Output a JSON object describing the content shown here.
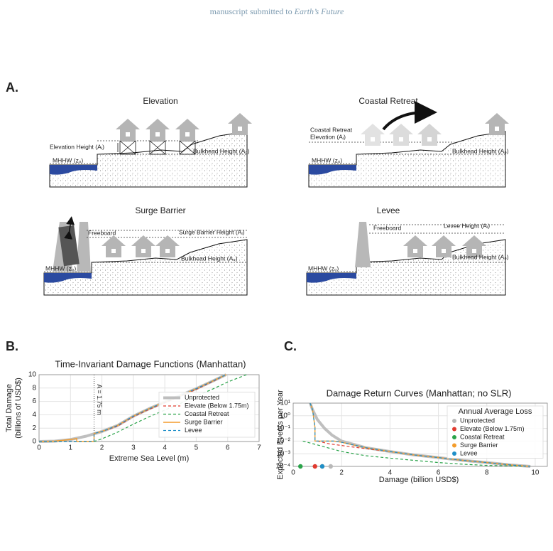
{
  "header": {
    "prefix": "manuscript submitted to",
    "journal": "Earth’s Future"
  },
  "panel_labels": [
    "A.",
    "B.",
    "C."
  ],
  "diagrams": [
    {
      "title": "Elevation",
      "labels": [
        "Elevation Height (Aᵢ)",
        "Bulkhead Height (A₀)",
        "MHHW (z₀)"
      ]
    },
    {
      "title": "Coastal Retreat",
      "labels": [
        "Coastal Retreat",
        "Elevation (Aᵢ)",
        "Bulkhead Height (A₀)",
        "MHHW (z₀)"
      ]
    },
    {
      "title": "Surge Barrier",
      "labels": [
        "Freeboard",
        "Surge Barrier Height (Aᵢ)",
        "Bulkhead Height (A₀)",
        "MHHW (z₀)"
      ]
    },
    {
      "title": "Levee",
      "labels": [
        "Freeboard",
        "Levee Height (Aᵢ)",
        "Bulkhead Height (A₀)",
        "MHHW (z₀)"
      ]
    }
  ],
  "chart_data": [
    {
      "type": "line",
      "title": "Time-Invariant Damage Functions (Manhattan)",
      "xlabel": "Extreme Sea Level (m)",
      "ylabel": [
        "Total Damage",
        "(billions of USD$)"
      ],
      "xlim": [
        0,
        7
      ],
      "ylim": [
        0,
        10
      ],
      "xticks": [
        0,
        1,
        2,
        3,
        4,
        5,
        6,
        7
      ],
      "yticks": [
        0,
        2,
        4,
        6,
        8,
        10
      ],
      "grid": true,
      "legend": "lower right",
      "annotation": {
        "text": "A = 1.75 m",
        "x": 1.75
      },
      "series": [
        {
          "name": "Unprotected",
          "color": "#b8b8b8",
          "style": "thick",
          "x": [
            0,
            0.5,
            1,
            1.5,
            2,
            2.5,
            3,
            3.5,
            4,
            4.5,
            5,
            5.5,
            5.95
          ],
          "values": [
            0,
            0.05,
            0.3,
            0.8,
            1.5,
            2.4,
            3.8,
            4.9,
            5.9,
            6.9,
            7.9,
            9,
            10
          ]
        },
        {
          "name": "Elevate (Below 1.75m)",
          "color": "#e03a2f",
          "style": "dashed",
          "x": [
            0,
            1.75,
            1.75,
            2,
            2.5,
            3,
            3.5,
            4,
            4.5,
            5,
            5.5,
            5.95
          ],
          "values": [
            0.02,
            0.02,
            1.2,
            1.5,
            2.3,
            3.7,
            4.8,
            5.8,
            6.8,
            7.8,
            8.9,
            10
          ]
        },
        {
          "name": "Coastal Retreat",
          "color": "#2aa34a",
          "style": "dashed",
          "x": [
            0,
            1.75,
            2,
            2.5,
            3,
            3.5,
            4,
            4.5,
            5,
            5.5,
            6,
            6.6
          ],
          "values": [
            0,
            0,
            0.4,
            1.4,
            2.6,
            3.7,
            4.7,
            5.7,
            6.8,
            7.8,
            8.9,
            10
          ]
        },
        {
          "name": "Surge Barrier",
          "color": "#f39c2b",
          "style": "solid",
          "x": [
            0,
            0.5,
            1,
            1.2,
            1.2,
            1.75,
            1.75,
            2,
            2.5,
            3,
            3.5,
            4,
            4.5,
            5,
            5.5,
            5.95
          ],
          "values": [
            0,
            0.05,
            0.3,
            0.45,
            0,
            0,
            1.2,
            1.5,
            2.4,
            3.8,
            4.9,
            5.9,
            6.9,
            7.9,
            9,
            10
          ]
        },
        {
          "name": "Levee",
          "color": "#1f8fc8",
          "style": "dashed",
          "x": [
            0,
            1.75,
            1.75,
            2,
            2.5,
            3,
            3.5,
            4,
            4.5,
            5,
            5.5,
            5.95
          ],
          "values": [
            0,
            0,
            1.2,
            1.5,
            2.4,
            3.8,
            4.9,
            5.9,
            6.9,
            7.9,
            9,
            10
          ]
        }
      ]
    },
    {
      "type": "line",
      "title": "Damage Return Curves (Manhattan; no SLR)",
      "xlabel": "Damage (billion USD$)",
      "ylabel": [
        "Expected Events per Year"
      ],
      "xlim": [
        0,
        10.5
      ],
      "ylim": [
        0.0001,
        10
      ],
      "yscale": "log",
      "xticks": [
        0,
        2,
        4,
        6,
        8,
        10
      ],
      "yticks": [
        {
          "value": 0.0001,
          "label": "10⁻⁴"
        },
        {
          "value": 0.001,
          "label": "10⁻³"
        },
        {
          "value": 0.01,
          "label": "10⁻²"
        },
        {
          "value": 0.1,
          "label": "10⁻¹"
        },
        {
          "value": 1,
          "label": "10⁰"
        },
        {
          "value": 10,
          "label": "10¹"
        }
      ],
      "grid": true,
      "legend": "upper right",
      "legend_title": "Annual Average Loss",
      "series": [
        {
          "name": "Unprotected",
          "color": "#b8b8b8",
          "style": "thick",
          "aal": 1.55,
          "x": [
            0.7,
            0.8,
            1,
            1.3,
            1.6,
            2,
            3,
            4,
            5,
            6,
            7,
            8,
            9,
            9.8
          ],
          "values": [
            10,
            3,
            0.5,
            0.1,
            0.03,
            0.01,
            0.003,
            0.0015,
            0.0008,
            0.0005,
            0.0003,
            0.0002,
            0.00013,
            0.0001
          ]
        },
        {
          "name": "Elevate (Below 1.75m)",
          "color": "#e03a2f",
          "style": "dashed",
          "aal": 0.9,
          "x": [
            1,
            1.5,
            2,
            3,
            4,
            5,
            6,
            7,
            8,
            9,
            9.8
          ],
          "values": [
            0.01,
            0.006,
            0.0045,
            0.0025,
            0.0015,
            0.0008,
            0.0005,
            0.0003,
            0.0002,
            0.00013,
            0.0001
          ]
        },
        {
          "name": "Coastal Retreat",
          "color": "#2aa34a",
          "style": "dashed",
          "aal": 0.3,
          "x": [
            0.4,
            1,
            2,
            3,
            4,
            5,
            6,
            7,
            8,
            9,
            9.6
          ],
          "values": [
            0.01,
            0.005,
            0.0015,
            0.0007,
            0.00045,
            0.0003,
            0.0002,
            0.00015,
            0.00012,
            0.00011,
            0.0001
          ]
        },
        {
          "name": "Surge Barrier",
          "color": "#f39c2b",
          "style": "solid",
          "aal": 1.2,
          "x": [
            0.7,
            0.8,
            0.9,
            0.9,
            1.7,
            2,
            3,
            4,
            5,
            6,
            7,
            8,
            9,
            9.8
          ],
          "values": [
            10,
            3,
            0.12,
            0.01,
            0.01,
            0.008,
            0.003,
            0.0015,
            0.0008,
            0.0005,
            0.0003,
            0.0002,
            0.00013,
            0.0001
          ]
        },
        {
          "name": "Levee",
          "color": "#1f8fc8",
          "style": "dashed",
          "aal": 1.2,
          "x": [
            0.7,
            0.8,
            0.9,
            0.9,
            1.7,
            2,
            3,
            4,
            5,
            6,
            7,
            8,
            9,
            9.8
          ],
          "values": [
            10,
            3,
            0.12,
            0.01,
            0.01,
            0.008,
            0.003,
            0.0015,
            0.0008,
            0.0005,
            0.0003,
            0.0002,
            0.00013,
            0.0001
          ]
        }
      ]
    }
  ]
}
